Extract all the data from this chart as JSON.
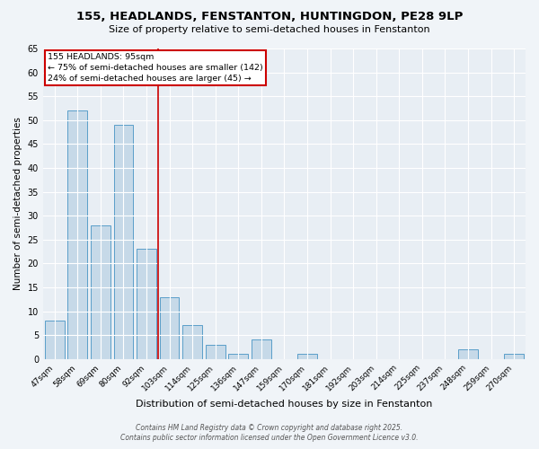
{
  "title1": "155, HEADLANDS, FENSTANTON, HUNTINGDON, PE28 9LP",
  "title2": "Size of property relative to semi-detached houses in Fenstanton",
  "xlabel": "Distribution of semi-detached houses by size in Fenstanton",
  "ylabel": "Number of semi-detached properties",
  "categories": [
    "47sqm",
    "58sqm",
    "69sqm",
    "80sqm",
    "92sqm",
    "103sqm",
    "114sqm",
    "125sqm",
    "136sqm",
    "147sqm",
    "159sqm",
    "170sqm",
    "181sqm",
    "192sqm",
    "203sqm",
    "214sqm",
    "225sqm",
    "237sqm",
    "248sqm",
    "259sqm",
    "270sqm"
  ],
  "values": [
    8,
    52,
    28,
    49,
    23,
    13,
    7,
    3,
    1,
    4,
    0,
    1,
    0,
    0,
    0,
    0,
    0,
    0,
    2,
    0,
    1
  ],
  "bar_color": "#c6d9e8",
  "bar_edge_color": "#5a9ec9",
  "vline_x": 4.5,
  "vline_color": "#cc0000",
  "annotation_title": "155 HEADLANDS: 95sqm",
  "annotation_line2": "← 75% of semi-detached houses are smaller (142)",
  "annotation_line3": "24% of semi-detached houses are larger (45) →",
  "annotation_box_color": "#cc0000",
  "ylim": [
    0,
    65
  ],
  "yticks": [
    0,
    5,
    10,
    15,
    20,
    25,
    30,
    35,
    40,
    45,
    50,
    55,
    60,
    65
  ],
  "footer1": "Contains HM Land Registry data © Crown copyright and database right 2025.",
  "footer2": "Contains public sector information licensed under the Open Government Licence v3.0.",
  "bg_color": "#f0f4f8",
  "plot_bg_color": "#e8eef4",
  "grid_color": "#ffffff",
  "title_fontsize": 9.5,
  "subtitle_fontsize": 8,
  "ylabel_fontsize": 7.5,
  "xlabel_fontsize": 8,
  "tick_fontsize": 6.5,
  "annotation_fontsize": 6.8,
  "footer_fontsize": 5.5
}
